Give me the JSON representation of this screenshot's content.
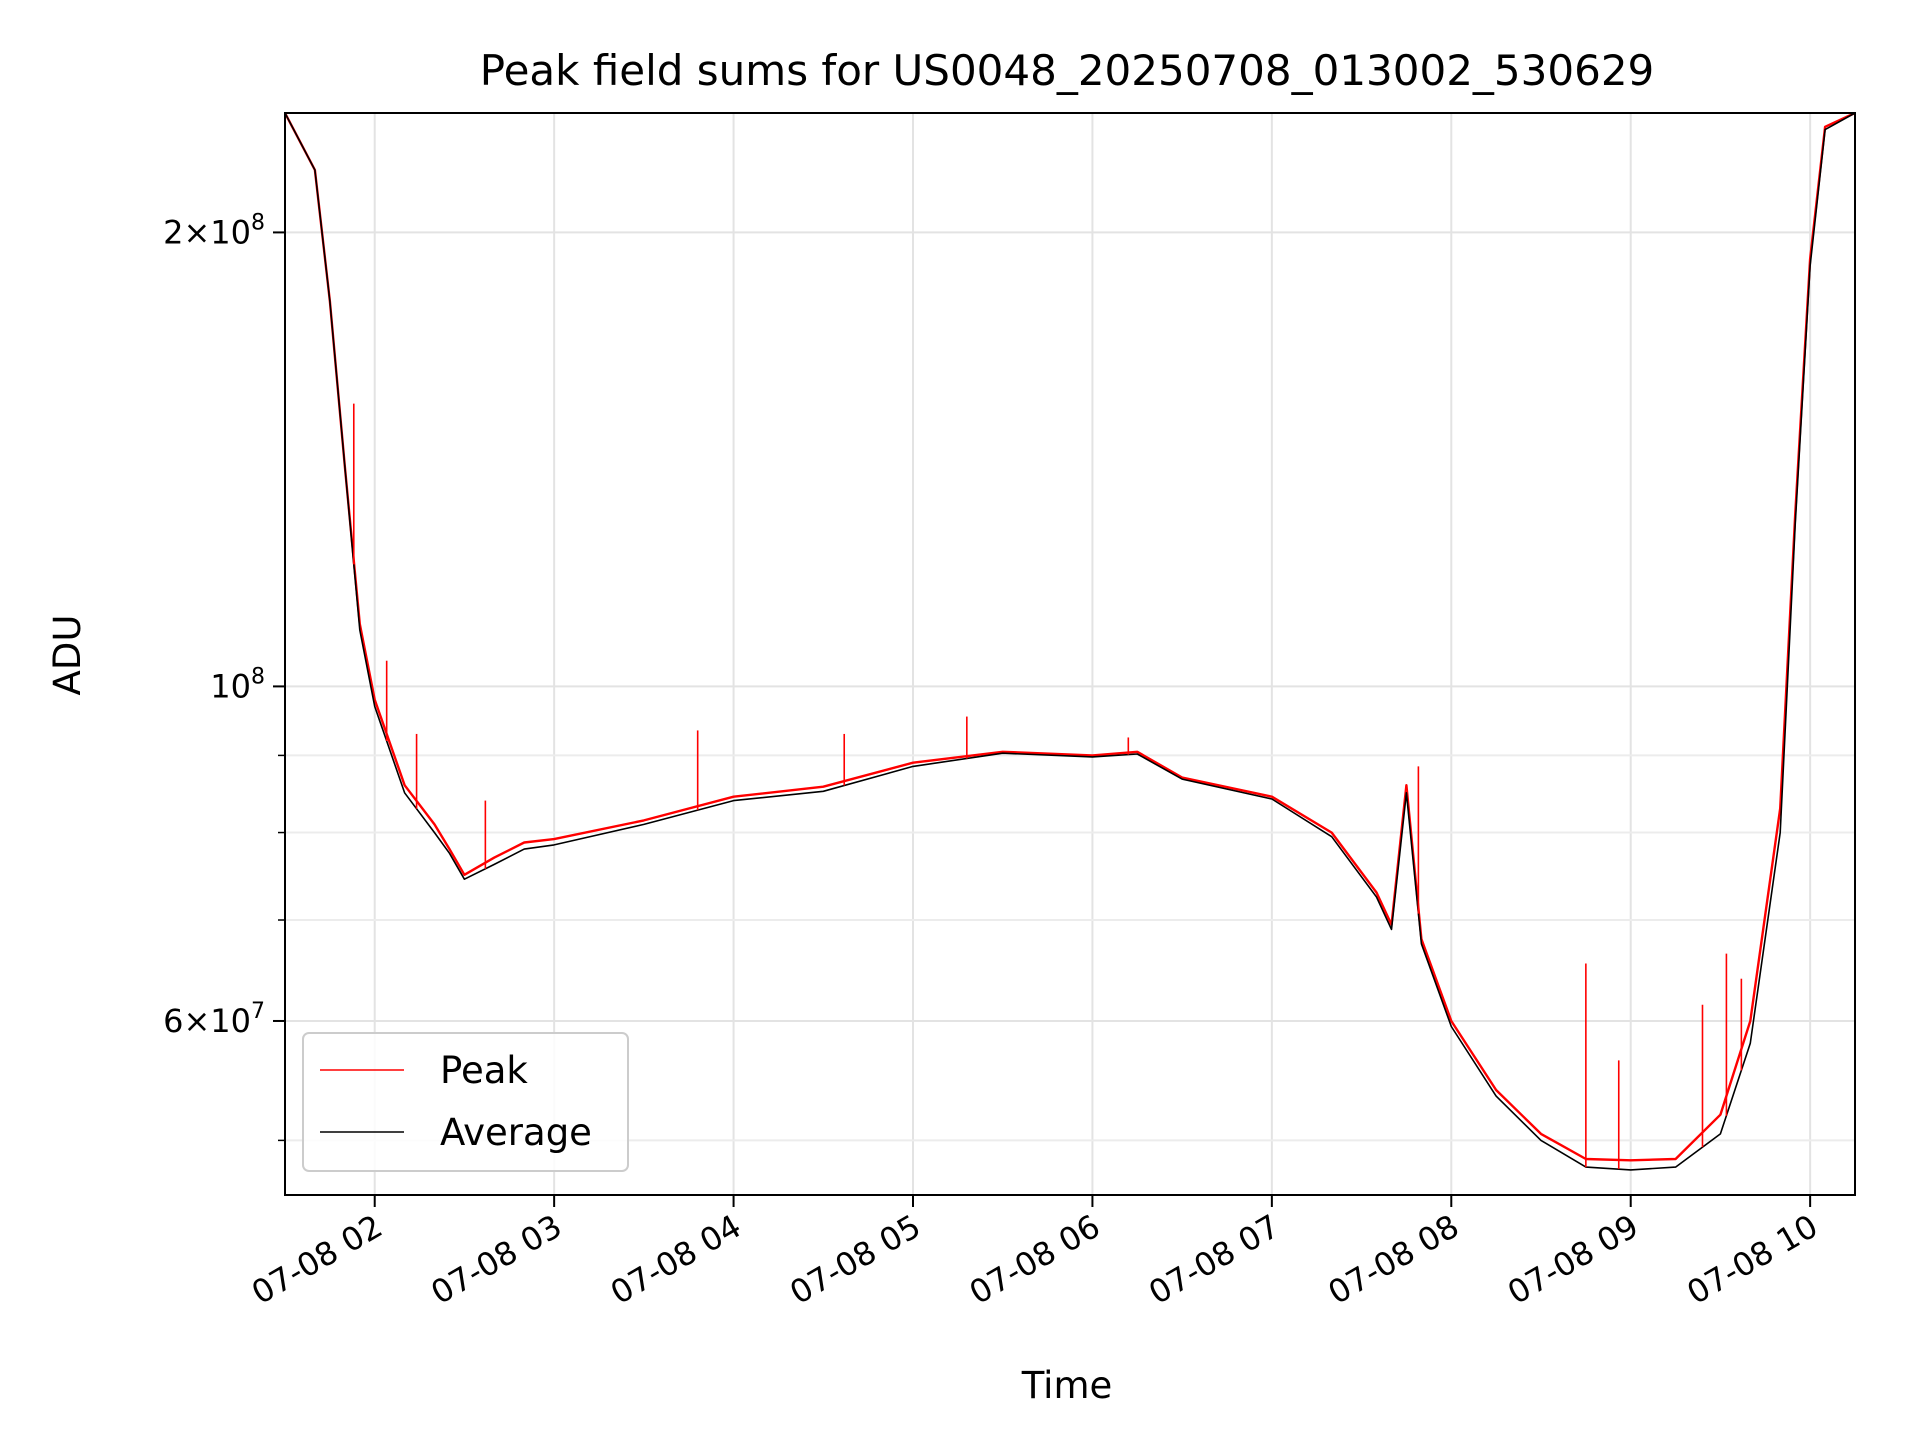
{
  "chart_data": {
    "type": "line",
    "title": "Peak field sums for US0048_20250708_013002_530629",
    "xlabel": "Time",
    "ylabel": "ADU",
    "yscale": "log",
    "grid": true,
    "legend_position": "lower-left",
    "xlim": [
      "2025-07-08T01:30",
      "2025-07-08T10:15"
    ],
    "ylim": [
      46000000,
      240000000
    ],
    "x_ticks": [
      "07-08 02",
      "07-08 03",
      "07-08 04",
      "07-08 05",
      "07-08 06",
      "07-08 07",
      "07-08 08",
      "07-08 09",
      "07-08 10"
    ],
    "y_ticks": [
      {
        "value": 200000000,
        "mantissa": "2",
        "exponent": "8"
      },
      {
        "value": 100000000,
        "mantissa": "",
        "exponent": "8"
      },
      {
        "value": 60000000,
        "mantissa": "6",
        "exponent": "7"
      }
    ],
    "y_minor_ticks": [
      50000000,
      70000000,
      80000000,
      90000000
    ],
    "x": [
      "2025-07-08T01:30",
      "2025-07-08T01:40",
      "2025-07-08T01:45",
      "2025-07-08T01:50",
      "2025-07-08T01:55",
      "2025-07-08T02:00",
      "2025-07-08T02:10",
      "2025-07-08T02:20",
      "2025-07-08T02:25",
      "2025-07-08T02:30",
      "2025-07-08T02:40",
      "2025-07-08T02:50",
      "2025-07-08T03:00",
      "2025-07-08T03:30",
      "2025-07-08T04:00",
      "2025-07-08T04:30",
      "2025-07-08T05:00",
      "2025-07-08T05:30",
      "2025-07-08T06:00",
      "2025-07-08T06:15",
      "2025-07-08T06:30",
      "2025-07-08T07:00",
      "2025-07-08T07:20",
      "2025-07-08T07:35",
      "2025-07-08T07:40",
      "2025-07-08T07:45",
      "2025-07-08T07:50",
      "2025-07-08T08:00",
      "2025-07-08T08:15",
      "2025-07-08T08:30",
      "2025-07-08T08:45",
      "2025-07-08T09:00",
      "2025-07-08T09:15",
      "2025-07-08T09:30",
      "2025-07-08T09:40",
      "2025-07-08T09:50",
      "2025-07-08T09:55",
      "2025-07-08T10:00",
      "2025-07-08T10:05",
      "2025-07-08T10:15"
    ],
    "series": [
      {
        "name": "Peak",
        "color": "#ff0000",
        "values": [
          240000000,
          220000000,
          180000000,
          140000000,
          110000000,
          98000000,
          86000000,
          81000000,
          78000000,
          75000000,
          77000000,
          78800000,
          79200000,
          81500000,
          84500000,
          85800000,
          89000000,
          90500000,
          90000000,
          90500000,
          87000000,
          84500000,
          80000000,
          73000000,
          69500000,
          86000000,
          68000000,
          60000000,
          54000000,
          50500000,
          48600000,
          48500000,
          48600000,
          52000000,
          60000000,
          83000000,
          130000000,
          192000000,
          235000000,
          240000000
        ],
        "spikes": [
          {
            "x": "2025-07-08T01:53",
            "value": 154000000
          },
          {
            "x": "2025-07-08T02:04",
            "value": 104000000
          },
          {
            "x": "2025-07-08T02:14",
            "value": 93000000
          },
          {
            "x": "2025-07-08T02:37",
            "value": 84000000
          },
          {
            "x": "2025-07-08T03:48",
            "value": 93500000
          },
          {
            "x": "2025-07-08T04:37",
            "value": 93000000
          },
          {
            "x": "2025-07-08T05:18",
            "value": 95500000
          },
          {
            "x": "2025-07-08T06:12",
            "value": 92500000
          },
          {
            "x": "2025-07-08T07:49",
            "value": 88500000
          },
          {
            "x": "2025-07-08T08:45",
            "value": 65500000
          },
          {
            "x": "2025-07-08T08:56",
            "value": 56500000
          },
          {
            "x": "2025-07-08T09:24",
            "value": 61500000
          },
          {
            "x": "2025-07-08T09:32",
            "value": 66500000
          },
          {
            "x": "2025-07-08T09:37",
            "value": 64000000
          }
        ]
      },
      {
        "name": "Average",
        "color": "#000000",
        "values": [
          240000000,
          220000000,
          180000000,
          140000000,
          109000000,
          97000000,
          85000000,
          80000000,
          77500000,
          74500000,
          76200000,
          78000000,
          78500000,
          81000000,
          84000000,
          85200000,
          88500000,
          90300000,
          89800000,
          90200000,
          86800000,
          84200000,
          79500000,
          72500000,
          69000000,
          85000000,
          67500000,
          59500000,
          53500000,
          50000000,
          48000000,
          47800000,
          48000000,
          50500000,
          58000000,
          80000000,
          128000000,
          190000000,
          234000000,
          240000000
        ]
      }
    ]
  }
}
